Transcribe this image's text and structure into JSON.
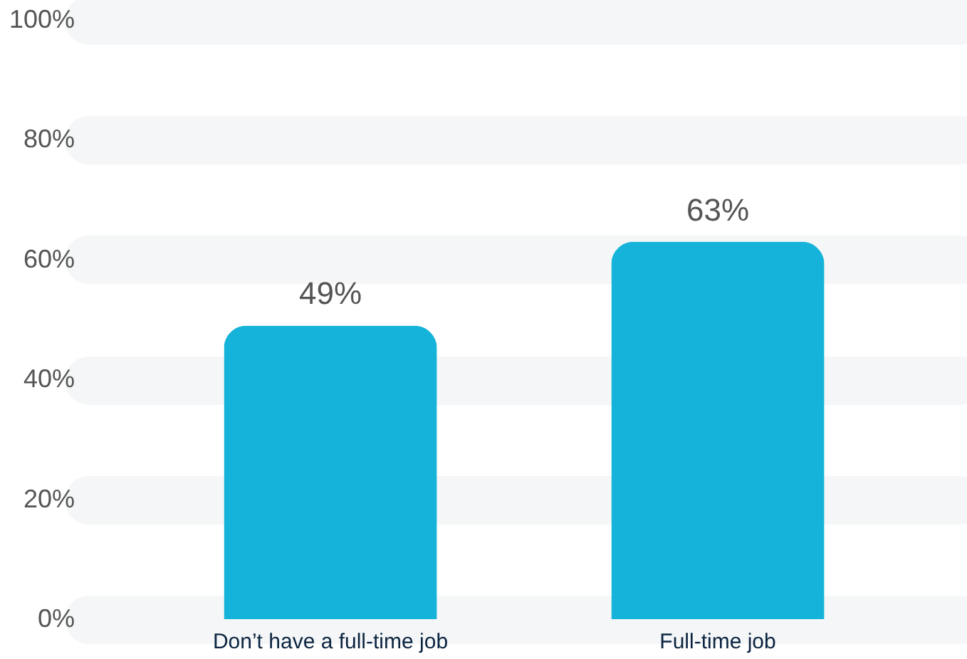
{
  "chart_data": {
    "type": "bar",
    "categories": [
      "Don’t have a full-time job",
      "Full-time job"
    ],
    "values": [
      49,
      63
    ],
    "color": "#15b3d9",
    "value_labels": [
      "49%",
      "63%"
    ],
    "ylim": [
      0,
      100
    ],
    "yticks": [
      {
        "value": 0,
        "label": "0%"
      },
      {
        "value": 20,
        "label": "20%"
      },
      {
        "value": 40,
        "label": "40%"
      },
      {
        "value": 60,
        "label": "60%"
      },
      {
        "value": 80,
        "label": "80%"
      },
      {
        "value": 100,
        "label": "100%"
      }
    ],
    "grid": "y"
  }
}
